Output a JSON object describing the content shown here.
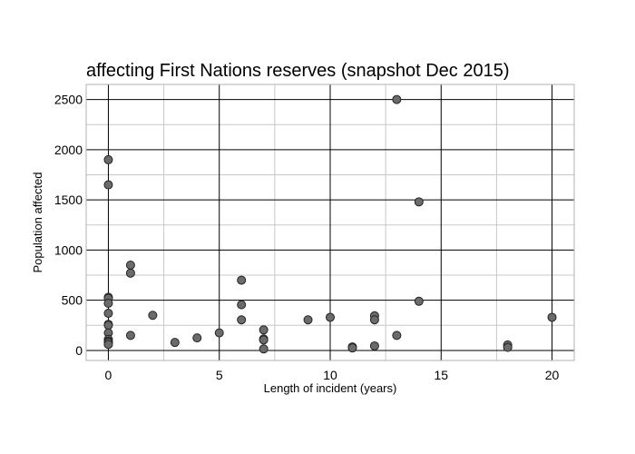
{
  "chart_data": {
    "type": "scatter",
    "title": "affecting First Nations reserves (snapshot Dec 2015)",
    "xlabel": "Length of incident (years)",
    "ylabel": "Population affected",
    "xlim": [
      -1,
      21
    ],
    "ylim": [
      -100,
      2650
    ],
    "x_major_ticks": [
      0,
      5,
      10,
      15,
      20
    ],
    "x_minor_ticks": [
      2.5,
      7.5,
      12.5,
      17.5
    ],
    "y_major_ticks": [
      0,
      500,
      1000,
      1500,
      2000,
      2500
    ],
    "y_minor_ticks": [
      250,
      750,
      1250,
      1750,
      2250
    ],
    "x_tick_labels": [
      "0",
      "5",
      "10",
      "15",
      "20"
    ],
    "y_tick_labels": [
      "0",
      "500",
      "1000",
      "1500",
      "2000",
      "2500"
    ],
    "grid": true,
    "colors": {
      "marker_fill": "#6b6b6b",
      "marker_edge": "#222222",
      "major_grid": "#000000",
      "minor_grid": "#c8c8c8",
      "frame": "#b0b0b0"
    },
    "points": [
      {
        "x": 0,
        "y": 1900
      },
      {
        "x": 0,
        "y": 1650
      },
      {
        "x": 0,
        "y": 530
      },
      {
        "x": 0,
        "y": 520
      },
      {
        "x": 0,
        "y": 470
      },
      {
        "x": 0,
        "y": 370
      },
      {
        "x": 0,
        "y": 260
      },
      {
        "x": 0,
        "y": 250
      },
      {
        "x": 0,
        "y": 175
      },
      {
        "x": 0,
        "y": 110
      },
      {
        "x": 0,
        "y": 90
      },
      {
        "x": 0,
        "y": 80
      },
      {
        "x": 0,
        "y": 60
      },
      {
        "x": 1,
        "y": 850
      },
      {
        "x": 1,
        "y": 770
      },
      {
        "x": 1,
        "y": 150
      },
      {
        "x": 2,
        "y": 350
      },
      {
        "x": 3,
        "y": 80
      },
      {
        "x": 4,
        "y": 125
      },
      {
        "x": 5,
        "y": 175
      },
      {
        "x": 6,
        "y": 700
      },
      {
        "x": 6,
        "y": 455
      },
      {
        "x": 6,
        "y": 305
      },
      {
        "x": 7,
        "y": 205
      },
      {
        "x": 7,
        "y": 115
      },
      {
        "x": 7,
        "y": 105
      },
      {
        "x": 7,
        "y": 15
      },
      {
        "x": 9,
        "y": 305
      },
      {
        "x": 10,
        "y": 330
      },
      {
        "x": 11,
        "y": 35
      },
      {
        "x": 11,
        "y": 25
      },
      {
        "x": 12,
        "y": 345
      },
      {
        "x": 12,
        "y": 305
      },
      {
        "x": 12,
        "y": 45
      },
      {
        "x": 13,
        "y": 2500
      },
      {
        "x": 13,
        "y": 150
      },
      {
        "x": 14,
        "y": 1480
      },
      {
        "x": 14,
        "y": 490
      },
      {
        "x": 18,
        "y": 55
      },
      {
        "x": 18,
        "y": 30
      },
      {
        "x": 20,
        "y": 330
      }
    ]
  }
}
